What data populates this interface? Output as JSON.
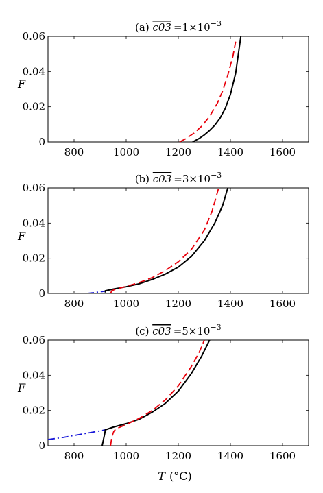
{
  "figure": {
    "xlabel_var": "T",
    "xlabel_unit": "(°C)",
    "ylabel": "F",
    "colors": {
      "solid": "#000000",
      "dashed": "#e8000b",
      "dashdot": "#1515d8"
    }
  },
  "chart_data": [
    {
      "type": "line",
      "title_prefix": "(a)",
      "title_var": "c03",
      "title_value": "=1×10",
      "title_exp": "−3",
      "xlim": [
        700,
        1700
      ],
      "ylim": [
        0,
        0.06
      ],
      "xticks": [
        "800",
        "1000",
        "1200",
        "1400",
        "1600"
      ],
      "yticks": [
        "0",
        "0.02",
        "0.04",
        "0.06"
      ],
      "xtick_values": [
        800,
        1000,
        1200,
        1400,
        1600
      ],
      "ytick_values": [
        0,
        0.02,
        0.04,
        0.06
      ],
      "series": [
        {
          "style": "solid",
          "x": [
            1255,
            1280,
            1300,
            1320,
            1340,
            1360,
            1380,
            1400,
            1420,
            1440
          ],
          "y": [
            0,
            0.002,
            0.004,
            0.0065,
            0.0095,
            0.0135,
            0.019,
            0.027,
            0.039,
            0.06
          ]
        },
        {
          "style": "dashed",
          "x": [
            1205,
            1230,
            1260,
            1290,
            1320,
            1350,
            1370,
            1390,
            1410,
            1420
          ],
          "y": [
            0,
            0.002,
            0.005,
            0.009,
            0.0145,
            0.022,
            0.029,
            0.038,
            0.049,
            0.057
          ]
        }
      ]
    },
    {
      "type": "line",
      "title_prefix": "(b)",
      "title_var": "c03",
      "title_value": "=3×10",
      "title_exp": "−3",
      "xlim": [
        700,
        1700
      ],
      "ylim": [
        0,
        0.06
      ],
      "xticks": [
        "800",
        "1000",
        "1200",
        "1400",
        "1600"
      ],
      "yticks": [
        "0",
        "0.02",
        "0.04",
        "0.06"
      ],
      "xtick_values": [
        800,
        1000,
        1200,
        1400,
        1600
      ],
      "ytick_values": [
        0,
        0.02,
        0.04,
        0.06
      ],
      "series": [
        {
          "style": "dashdot",
          "x": [
            850,
            870,
            890,
            910,
            920
          ],
          "y": [
            0,
            0.0003,
            0.0007,
            0.0011,
            0.0013
          ]
        },
        {
          "style": "solid",
          "x": [
            920,
            920,
            950,
            1000,
            1050,
            1100,
            1150,
            1200,
            1250,
            1300,
            1340,
            1370,
            1390
          ],
          "y": [
            0.0005,
            0.0015,
            0.0025,
            0.0038,
            0.0055,
            0.008,
            0.011,
            0.015,
            0.021,
            0.03,
            0.04,
            0.05,
            0.06
          ]
        },
        {
          "style": "dashed",
          "x": [
            940,
            945,
            960,
            1000,
            1050,
            1100,
            1150,
            1200,
            1250,
            1300,
            1330,
            1355
          ],
          "y": [
            0,
            0.0015,
            0.0025,
            0.004,
            0.0062,
            0.009,
            0.013,
            0.018,
            0.025,
            0.036,
            0.047,
            0.06
          ]
        }
      ]
    },
    {
      "type": "line",
      "title_prefix": "(c)",
      "title_var": "c03",
      "title_value": "=5×10",
      "title_exp": "−3",
      "xlim": [
        700,
        1700
      ],
      "ylim": [
        0,
        0.06
      ],
      "xticks": [
        "800",
        "1000",
        "1200",
        "1400",
        "1600"
      ],
      "yticks": [
        "0",
        "0.02",
        "0.04",
        "0.06"
      ],
      "xtick_values": [
        800,
        1000,
        1200,
        1400,
        1600
      ],
      "ytick_values": [
        0,
        0.02,
        0.04,
        0.06
      ],
      "series": [
        {
          "style": "dashdot",
          "x": [
            700,
            750,
            800,
            850,
            900,
            920
          ],
          "y": [
            0.0035,
            0.0045,
            0.0058,
            0.0071,
            0.0084,
            0.009
          ]
        },
        {
          "style": "solid",
          "x": [
            908,
            912,
            918,
            920,
            950,
            1000,
            1050,
            1100,
            1150,
            1200,
            1250,
            1290,
            1320
          ],
          "y": [
            0,
            0.003,
            0.007,
            0.009,
            0.0105,
            0.0125,
            0.015,
            0.019,
            0.024,
            0.031,
            0.041,
            0.051,
            0.06
          ]
        },
        {
          "style": "dashed",
          "x": [
            940,
            945,
            952,
            960,
            1000,
            1050,
            1100,
            1150,
            1200,
            1250,
            1280,
            1300
          ],
          "y": [
            0,
            0.005,
            0.008,
            0.0095,
            0.012,
            0.0155,
            0.02,
            0.026,
            0.034,
            0.045,
            0.053,
            0.06
          ]
        }
      ]
    }
  ]
}
